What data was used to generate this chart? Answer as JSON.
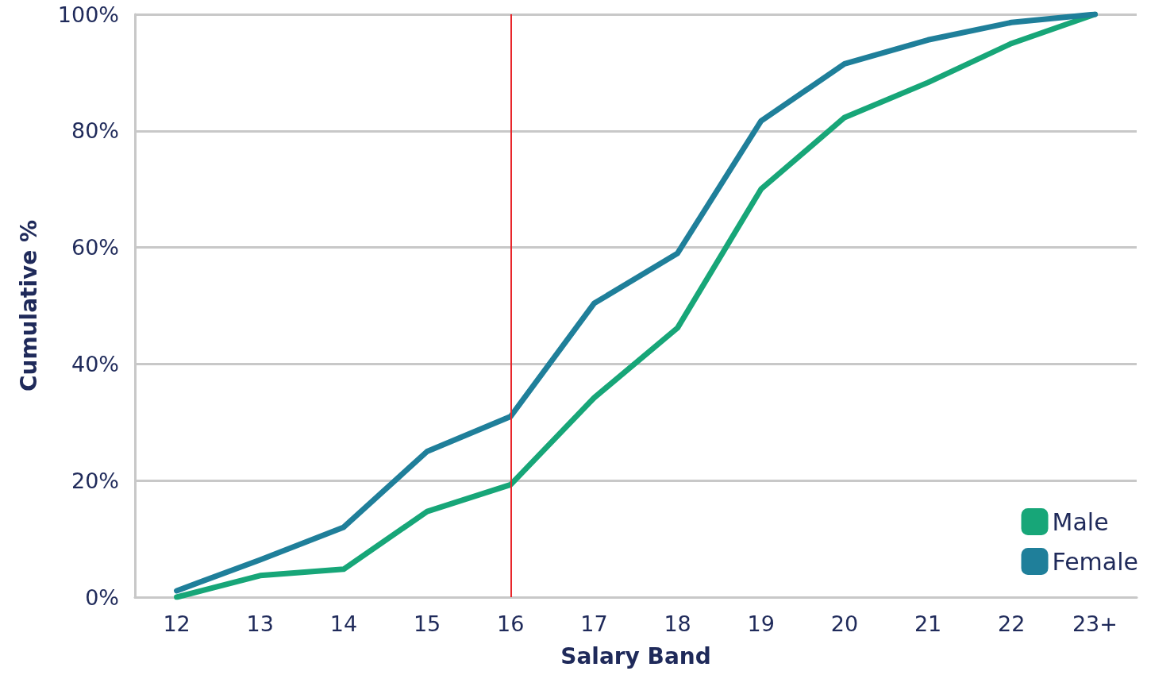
{
  "chart_data": {
    "type": "line",
    "xlabel": "Salary Band",
    "ylabel": "Cumulative %",
    "categories": [
      "12",
      "13",
      "14",
      "15",
      "16",
      "17",
      "18",
      "19",
      "20",
      "21",
      "22",
      "23+"
    ],
    "series": [
      {
        "name": "Male",
        "color": "#17a678",
        "values": [
          0,
          3.7,
          4.8,
          14.7,
          19.3,
          34.2,
          46.2,
          70,
          82.3,
          88.3,
          95,
          100
        ]
      },
      {
        "name": "Female",
        "color": "#1f7f9a",
        "values": [
          1.1,
          6.4,
          12,
          25,
          31,
          50.4,
          59,
          81.7,
          91.5,
          95.6,
          98.6,
          100
        ]
      }
    ],
    "ylim": [
      0,
      100
    ],
    "yticks": [
      {
        "value": 0,
        "label": "0%"
      },
      {
        "value": 20,
        "label": "20%"
      },
      {
        "value": 40,
        "label": "40%"
      },
      {
        "value": 60,
        "label": "60%"
      },
      {
        "value": 80,
        "label": "80%"
      },
      {
        "value": 100,
        "label": "100%"
      }
    ],
    "ref_lines": [
      {
        "axis": "x",
        "value": "16",
        "color": "#e8262b"
      }
    ],
    "grid": "y",
    "legend": "bottom right",
    "marker": "none",
    "line_style": "solid"
  }
}
